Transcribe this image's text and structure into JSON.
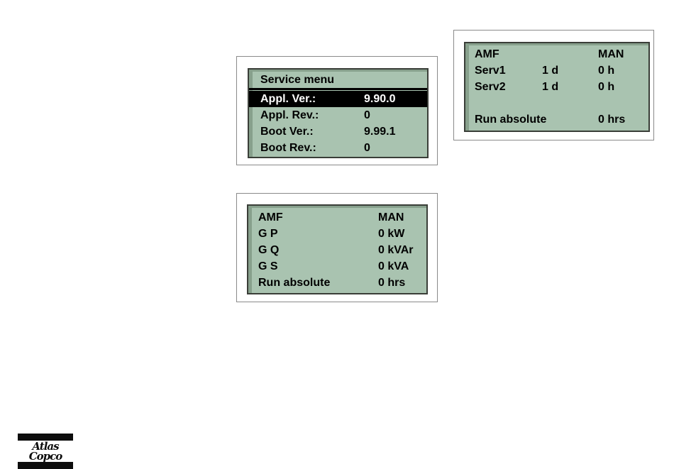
{
  "colors": {
    "lcd_bg": "#a9c3b0",
    "lcd_edge": "#87a08c",
    "lcd_border": "#3a3e38",
    "highlight_bg": "#000000",
    "highlight_text": "#ffffff",
    "text": "#000000"
  },
  "screens": {
    "service_menu": {
      "header": "Service menu",
      "highlighted_row": {
        "label": "Appl. Ver.:",
        "value": "9.90.0"
      },
      "rows": [
        {
          "label": "Appl. Rev.:",
          "value": "0"
        },
        {
          "label": "Boot Ver.:",
          "value": "9.99.1"
        },
        {
          "label": "Boot Rev.:",
          "value": "0"
        }
      ]
    },
    "service_timers": {
      "rows": [
        {
          "label": "AMF",
          "col2": "",
          "col3": "MAN"
        },
        {
          "label": "Serv1",
          "col2": "1 d",
          "col3": "0 h"
        },
        {
          "label": "Serv2",
          "col2": "1 d",
          "col3": "0 h"
        },
        {
          "label": "",
          "col2": "",
          "col3": ""
        },
        {
          "label": "Run absolute",
          "col2": "",
          "col3": "0 hrs"
        }
      ]
    },
    "generator_power": {
      "rows": [
        {
          "label": "AMF",
          "value": "MAN"
        },
        {
          "label": "G P",
          "value": "0 kW"
        },
        {
          "label": "G Q",
          "value": "0 kVAr"
        },
        {
          "label": "G S",
          "value": "0 kVA"
        },
        {
          "label": "Run absolute",
          "value": "0 hrs"
        }
      ]
    }
  },
  "logo": {
    "text": "Atlas Copco"
  }
}
